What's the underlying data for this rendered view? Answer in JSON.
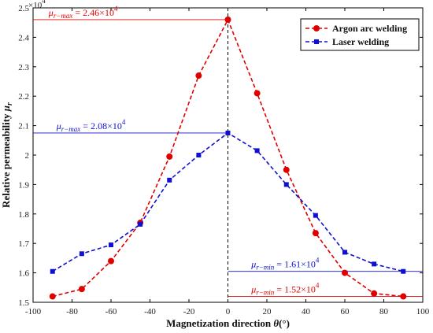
{
  "chart_data": {
    "type": "line",
    "title": "",
    "xlabel": "Magnetization direction",
    "xlabel_symbol": "θ",
    "xlabel_unit": "(°)",
    "ylabel": "Relative permeability",
    "ylabel_symbol": "μ",
    "ylabel_sub": "r",
    "y_exponent": "×10",
    "y_exponent_power": "4",
    "xlim": [
      -100,
      100
    ],
    "ylim": [
      1.5,
      2.5
    ],
    "xticks": [
      -100,
      -80,
      -60,
      -40,
      -20,
      0,
      20,
      40,
      60,
      80,
      100
    ],
    "yticks": [
      1.5,
      1.6,
      1.7,
      1.8,
      1.9,
      2.0,
      2.1,
      2.2,
      2.3,
      2.4,
      2.5
    ],
    "xtick_labels": [
      "-100",
      "-80",
      "-60",
      "-40",
      "-20",
      "0",
      "20",
      "40",
      "60",
      "80",
      "100"
    ],
    "ytick_labels": [
      "1.5",
      "1.6",
      "1.7",
      "1.8",
      "1.9",
      "2",
      "2.1",
      "2.2",
      "2.3",
      "2.4",
      "2.5"
    ],
    "legend_position": "top-right",
    "vertical_line_x": 0,
    "series": [
      {
        "name": "Argon arc welding",
        "color": "#e00000",
        "marker": "circle",
        "x": [
          -90,
          -75,
          -60,
          -45,
          -30,
          -15,
          0,
          15,
          30,
          45,
          60,
          75,
          90
        ],
        "y": [
          1.52,
          1.545,
          1.64,
          1.77,
          1.995,
          2.27,
          2.46,
          2.21,
          1.95,
          1.735,
          1.6,
          1.53,
          1.52
        ]
      },
      {
        "name": "Laser welding",
        "color": "#1010d0",
        "marker": "square",
        "x": [
          -90,
          -75,
          -60,
          -45,
          -30,
          -15,
          0,
          15,
          30,
          45,
          60,
          75,
          90
        ],
        "y": [
          1.605,
          1.665,
          1.695,
          1.765,
          1.915,
          2.0,
          2.075,
          2.015,
          1.9,
          1.795,
          1.67,
          1.63,
          1.605
        ]
      }
    ],
    "annotations": [
      {
        "id": "argon-max",
        "symbol": "μ",
        "sub": "r−max",
        "text": " = 2.46×10",
        "power": "4",
        "color": "#e00000",
        "y": 2.46,
        "label_x": -92
      },
      {
        "id": "laser-max",
        "symbol": "μ",
        "sub": "r−max",
        "text": " = 2.08×10",
        "power": "4",
        "color": "#1010d0",
        "y": 2.075,
        "label_x": -88
      },
      {
        "id": "laser-min",
        "symbol": "μ",
        "sub": "r−min",
        "text": " = 1.61×10",
        "power": "4",
        "color": "#1010d0",
        "y": 1.605,
        "label_x": 12
      },
      {
        "id": "argon-min",
        "symbol": "μ",
        "sub": "r−min",
        "text": " = 1.52×10",
        "power": "4",
        "color": "#e00000",
        "y": 1.52,
        "label_x": 12
      }
    ]
  }
}
